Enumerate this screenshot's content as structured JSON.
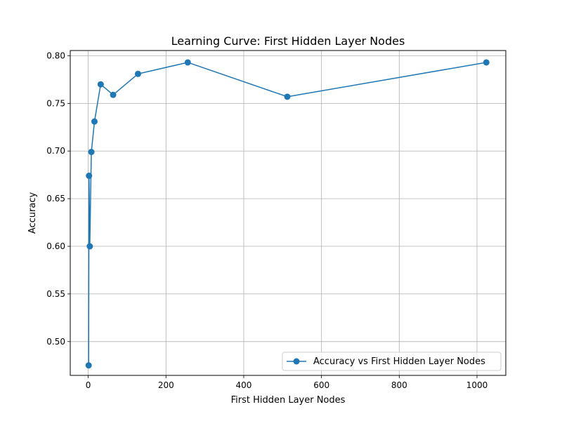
{
  "chart_data": {
    "type": "line",
    "title": "Learning Curve: First Hidden Layer Nodes",
    "xlabel": "First Hidden Layer Nodes",
    "ylabel": "Accuracy",
    "xlim": [
      -46.3,
      1074.1
    ],
    "ylim": [
      0.4645,
      0.8055
    ],
    "xticks": [
      0,
      200,
      400,
      600,
      800,
      1000
    ],
    "xtick_labels": [
      "0",
      "200",
      "400",
      "600",
      "800",
      "1000"
    ],
    "yticks": [
      0.5,
      0.55,
      0.6,
      0.65,
      0.7,
      0.75,
      0.8
    ],
    "ytick_labels": [
      "0.50",
      "0.55",
      "0.60",
      "0.65",
      "0.70",
      "0.75",
      "0.80"
    ],
    "grid": true,
    "legend_position": "lower-right",
    "series": [
      {
        "name": "Accuracy vs First Hidden Layer Nodes",
        "color": "#1f77b4",
        "marker": "circle",
        "x": [
          1,
          2,
          4,
          8,
          16,
          32,
          64,
          128,
          256,
          512,
          1024
        ],
        "y": [
          0.475,
          0.674,
          0.6,
          0.699,
          0.731,
          0.77,
          0.759,
          0.781,
          0.793,
          0.757,
          0.793
        ]
      }
    ]
  }
}
